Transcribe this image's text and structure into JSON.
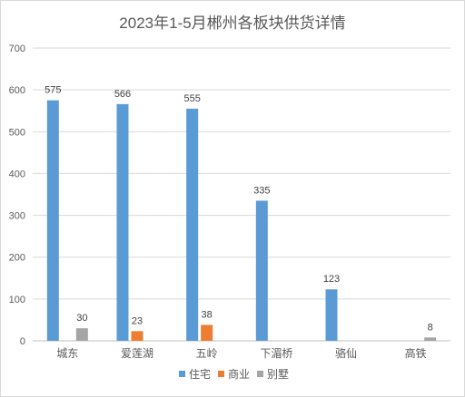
{
  "chart_data": {
    "type": "bar",
    "title": "2023年1-5月郴州各板块供货详情",
    "xlabel": "",
    "ylabel": "",
    "categories": [
      "城东",
      "爱莲湖",
      "五岭",
      "下湄桥",
      "骆仙",
      "高铁"
    ],
    "series": [
      {
        "name": "住宅",
        "color": "#5b9bd5",
        "values": [
          575,
          566,
          555,
          335,
          123,
          null
        ]
      },
      {
        "name": "商业",
        "color": "#ed7d31",
        "values": [
          null,
          23,
          38,
          null,
          null,
          null
        ]
      },
      {
        "name": "别墅",
        "color": "#a5a5a5",
        "values": [
          30,
          null,
          null,
          null,
          null,
          8
        ]
      }
    ],
    "ylim": [
      0,
      700
    ],
    "yticks": [
      0,
      100,
      200,
      300,
      400,
      500,
      600,
      700
    ],
    "grid": true,
    "legend_position": "bottom",
    "data_labels": true
  }
}
